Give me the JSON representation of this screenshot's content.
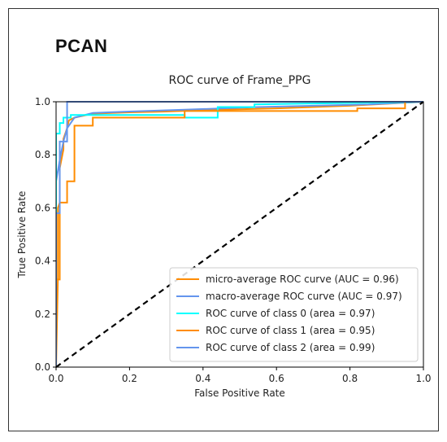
{
  "panel_label": "PCAN",
  "chart_data": {
    "type": "line",
    "title": "ROC curve of Frame_PPG",
    "xlabel": "False Positive Rate",
    "ylabel": "True Positive Rate",
    "xlim": [
      0.0,
      1.0
    ],
    "ylim": [
      0.0,
      1.0
    ],
    "xticks": [
      "0.0",
      "0.2",
      "0.4",
      "0.6",
      "0.8",
      "1.0"
    ],
    "yticks": [
      "0.0",
      "0.2",
      "0.4",
      "0.6",
      "0.8",
      "1.0"
    ],
    "grid": false,
    "legend_position": "lower-right",
    "diagonal": {
      "x": [
        0,
        1
      ],
      "y": [
        0,
        1
      ],
      "style": "dashed",
      "color": "#000000"
    },
    "series": [
      {
        "name": "micro-average ROC curve (AUC = 0.96)",
        "color": "#ff8c00",
        "x": [
          0,
          0.005,
          0.005,
          0.01,
          0.01,
          0.02,
          0.02,
          0.03,
          0.035,
          0.05,
          0.1,
          0.15,
          0.2,
          0.3,
          0.35,
          0.45,
          0.6,
          0.8,
          1.0
        ],
        "y": [
          0,
          0.34,
          0.6,
          0.62,
          0.75,
          0.82,
          0.86,
          0.9,
          0.93,
          0.94,
          0.955,
          0.958,
          0.96,
          0.963,
          0.966,
          0.97,
          0.975,
          0.985,
          1.0
        ]
      },
      {
        "name": "macro-average ROC curve (AUC = 0.97)",
        "color": "#6495ed",
        "x": [
          0,
          0.0,
          0.01,
          0.02,
          0.03,
          0.05,
          0.1,
          0.2,
          0.35,
          0.55,
          0.85,
          1.0
        ],
        "y": [
          0,
          0.7,
          0.78,
          0.85,
          0.9,
          0.94,
          0.958,
          0.963,
          0.97,
          0.98,
          0.99,
          1.0
        ]
      },
      {
        "name": "ROC curve of class 0 (area = 0.97)",
        "color": "#00ffff",
        "x": [
          0,
          0.0,
          0.01,
          0.01,
          0.02,
          0.02,
          0.04,
          0.04,
          0.35,
          0.35,
          0.44,
          0.44,
          0.54,
          0.54,
          1.0
        ],
        "y": [
          0,
          0.88,
          0.88,
          0.92,
          0.92,
          0.94,
          0.94,
          0.95,
          0.95,
          0.94,
          0.94,
          0.98,
          0.98,
          0.99,
          1.0
        ]
      },
      {
        "name": "ROC curve of class 1 (area = 0.95)",
        "color": "#ff8c00",
        "x": [
          0,
          0.0,
          0.01,
          0.01,
          0.03,
          0.03,
          0.05,
          0.05,
          0.1,
          0.1,
          0.35,
          0.35,
          0.82,
          0.82,
          0.95,
          0.95,
          1.0
        ],
        "y": [
          0,
          0.33,
          0.33,
          0.62,
          0.62,
          0.7,
          0.7,
          0.91,
          0.91,
          0.94,
          0.94,
          0.965,
          0.965,
          0.975,
          0.975,
          1.0,
          1.0
        ]
      },
      {
        "name": "ROC curve of class 2 (area = 0.99)",
        "color": "#6495ed",
        "x": [
          0,
          0.0,
          0.01,
          0.01,
          0.03,
          0.03,
          1.0
        ],
        "y": [
          0,
          0.58,
          0.58,
          0.85,
          0.85,
          1.0,
          1.0
        ]
      }
    ]
  }
}
